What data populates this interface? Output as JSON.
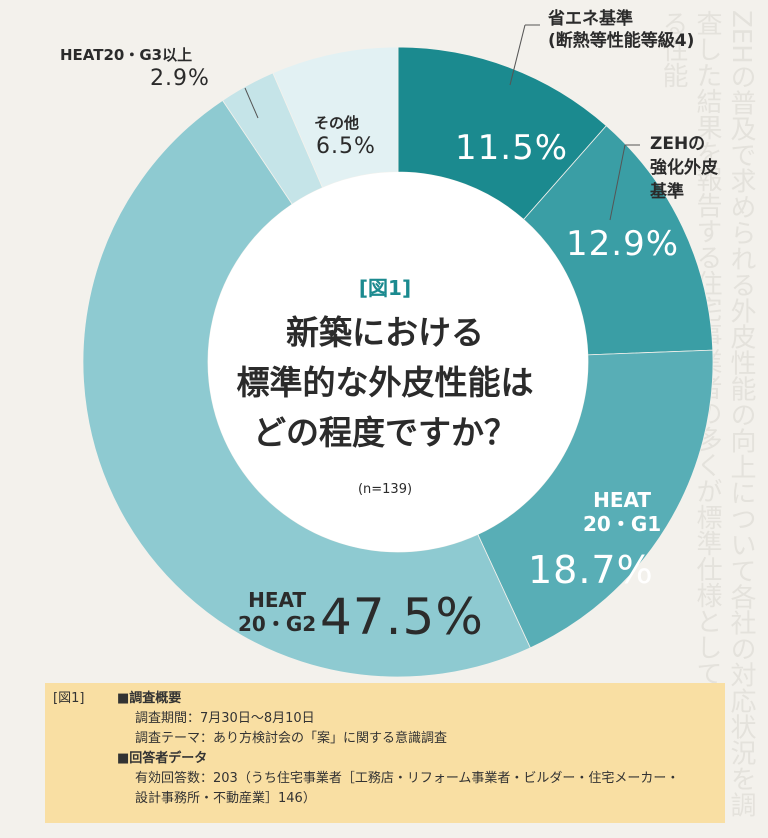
{
  "chart_data": {
    "type": "pie",
    "title": "新築における標準的な外皮性能はどの程度ですか？",
    "figure_label": "[図1]",
    "n": "(n=139)",
    "slices": [
      {
        "name": "省エネ基準 (断熱等性能等級4)",
        "value": 11.5,
        "label": "11.5%",
        "color": "#1b8a8f"
      },
      {
        "name": "ZEHの強化外皮基準",
        "value": 12.9,
        "label": "12.9%",
        "color": "#3a9ea5"
      },
      {
        "name": "HEAT20・G1",
        "value": 18.7,
        "label": "18.7%",
        "color": "#58aeb6"
      },
      {
        "name": "HEAT20・G2",
        "value": 47.5,
        "label": "47.5%",
        "color": "#8ecad1"
      },
      {
        "name": "HEAT20・G3以上",
        "value": 2.9,
        "label": "2.9%",
        "color": "#c5e4e8"
      },
      {
        "name": "その他",
        "value": 6.5,
        "label": "6.5%",
        "color": "#e2f1f3"
      }
    ]
  },
  "labels": {
    "shoene_line1": "省エネ基準",
    "shoene_line2": "(断熱等性能等級4)",
    "zeh_line1": "ZEHの",
    "zeh_line2": "強化外皮",
    "zeh_line3": "基準",
    "g1_line1": "HEAT",
    "g1_line2": "20・G1",
    "g2_line1": "HEAT",
    "g2_line2": "20・G2",
    "g3": "HEAT20・G3以上",
    "other": "その他"
  },
  "center": {
    "fig": "[図1]",
    "title_line1": "新築における",
    "title_line2": "標準的な外皮性能は",
    "title_line3": "どの程度ですか？",
    "n": "(n=139)"
  },
  "survey": {
    "fig": "[図1]",
    "heading1": "■調査概要",
    "period": "調査期間：7月30日〜8月10日",
    "theme": "調査テーマ：あり方検討会の「案」に関する意識調査",
    "heading2": "■回答者データ",
    "responses1": "有効回答数：203（うち住宅事業者［工務店・リフォーム事業者・ビルダー・住宅メーカー・",
    "responses2": "設計事務所・不動産業］146）"
  }
}
